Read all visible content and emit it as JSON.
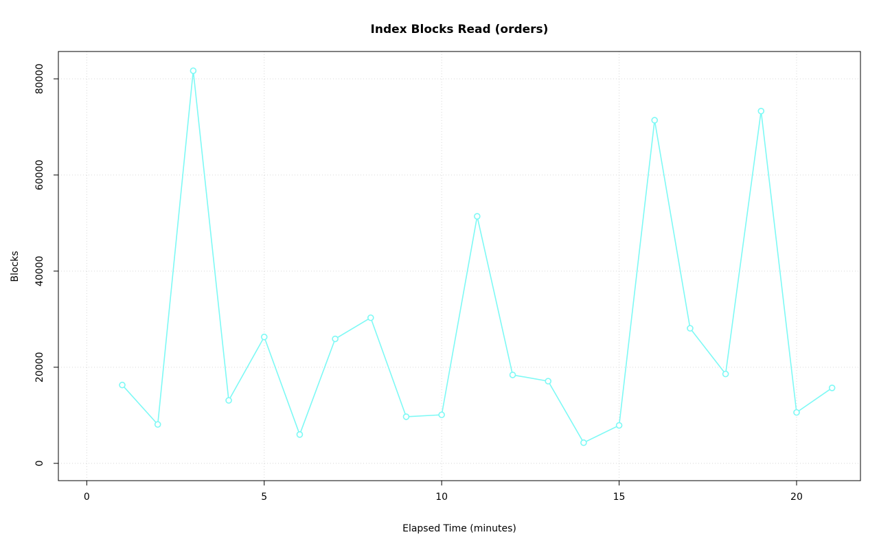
{
  "chart_data": {
    "type": "line",
    "title": "Index Blocks Read (orders)",
    "xlabel": "Elapsed Time (minutes)",
    "ylabel": "Blocks",
    "x": [
      1,
      2,
      3,
      4,
      5,
      6,
      7,
      8,
      9,
      10,
      11,
      12,
      13,
      14,
      15,
      16,
      17,
      18,
      19,
      20,
      21
    ],
    "y": [
      16300,
      8100,
      81700,
      13100,
      26300,
      6000,
      25900,
      30300,
      9700,
      10100,
      51400,
      18400,
      17100,
      4300,
      7900,
      71400,
      28100,
      18600,
      73300,
      10600,
      15700
    ],
    "x_ticks": [
      0,
      5,
      10,
      15,
      20
    ],
    "y_ticks": [
      0,
      20000,
      40000,
      60000,
      80000
    ],
    "x_tick_labels": [
      "0",
      "5",
      "10",
      "15",
      "20"
    ],
    "y_tick_labels": [
      "0",
      "20000",
      "40000",
      "60000",
      "80000"
    ],
    "xlim": [
      -0.8,
      21.8
    ],
    "ylim": [
      -3600,
      85700
    ],
    "grid": true,
    "legend": "none",
    "line_color": "#7df9f5",
    "marker_fill": "#ffffff",
    "grid_color": "#d6d6d6",
    "axis_color": "#000000"
  }
}
